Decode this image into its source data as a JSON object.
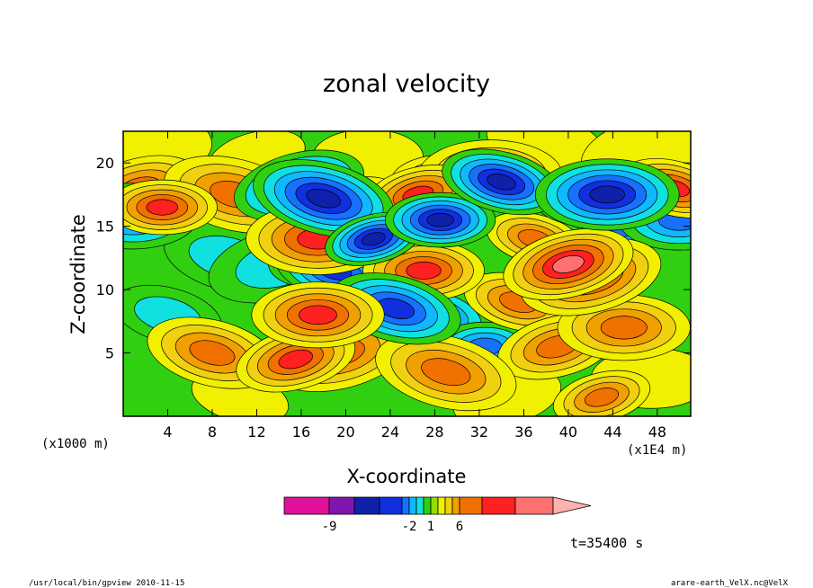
{
  "chart_data": {
    "type": "heatmap",
    "title": "zonal velocity",
    "xlabel": "X-coordinate",
    "ylabel": "Z-coordinate",
    "x_unit": "(x1000 m)",
    "x_scale_note": "(x1E4 m)",
    "x_ticks": [
      "4",
      "8",
      "12",
      "16",
      "20",
      "24",
      "28",
      "32",
      "36",
      "40",
      "44",
      "48"
    ],
    "y_ticks": [
      "5",
      "10",
      "15",
      "20"
    ],
    "xlim": [
      0,
      51
    ],
    "ylim": [
      0,
      22.5
    ],
    "colorbar": {
      "labels": [
        {
          "text": "-9",
          "level": -9
        },
        {
          "text": "-2",
          "level": -2
        },
        {
          "text": "1",
          "level": 1
        },
        {
          "text": "6",
          "level": 6
        }
      ],
      "levels": [
        -15,
        -12,
        -9,
        -6,
        -4,
        -3,
        -2,
        -1,
        0,
        1,
        2,
        3,
        4,
        6,
        9,
        12,
        15
      ],
      "colors": [
        "#e0109a",
        "#8015b0",
        "#1020a8",
        "#1030e0",
        "#1870ff",
        "#10b8ff",
        "#10e0e0",
        "#30d010",
        "#90e000",
        "#f0f000",
        "#f0d010",
        "#f0a000",
        "#f07000",
        "#ff2020",
        "#ff7070",
        "#ffb0b0"
      ]
    },
    "time_label": "t=35400 s",
    "features": [
      {
        "x": 3.5,
        "z": 16.5,
        "level": 6
      },
      {
        "x": 1.5,
        "z": 18.0,
        "level": 4
      },
      {
        "x": 0.8,
        "z": 15.8,
        "level": -4
      },
      {
        "x": 10.0,
        "z": 17.5,
        "level": 4
      },
      {
        "x": 9.5,
        "z": 12.5,
        "level": -2
      },
      {
        "x": 14.0,
        "z": 12.0,
        "level": -2
      },
      {
        "x": 17.5,
        "z": 12.0,
        "level": -2
      },
      {
        "x": 19.0,
        "z": 11.5,
        "level": -6
      },
      {
        "x": 15.8,
        "z": 18.2,
        "level": -6
      },
      {
        "x": 18.0,
        "z": 17.2,
        "level": -9
      },
      {
        "x": 17.5,
        "z": 14.0,
        "level": 6
      },
      {
        "x": 20.5,
        "z": 16.8,
        "level": 4
      },
      {
        "x": 22.5,
        "z": 14.0,
        "level": -9
      },
      {
        "x": 25.5,
        "z": 14.5,
        "level": -6
      },
      {
        "x": 26.5,
        "z": 17.5,
        "level": 6
      },
      {
        "x": 29.0,
        "z": 18.5,
        "level": 4
      },
      {
        "x": 28.5,
        "z": 15.5,
        "level": -9
      },
      {
        "x": 27.0,
        "z": 11.5,
        "level": 6
      },
      {
        "x": 24.5,
        "z": 8.5,
        "level": -6
      },
      {
        "x": 28.0,
        "z": 8.0,
        "level": -4
      },
      {
        "x": 23.5,
        "z": 6.0,
        "level": 4
      },
      {
        "x": 33.0,
        "z": 19.0,
        "level": 4
      },
      {
        "x": 34.0,
        "z": 18.5,
        "level": -9
      },
      {
        "x": 37.0,
        "z": 14.0,
        "level": 4
      },
      {
        "x": 40.0,
        "z": 12.0,
        "level": 9
      },
      {
        "x": 42.0,
        "z": 11.0,
        "level": 6
      },
      {
        "x": 43.5,
        "z": 17.5,
        "level": -9
      },
      {
        "x": 41.5,
        "z": 17.0,
        "level": -6
      },
      {
        "x": 45.5,
        "z": 15.0,
        "level": -4
      },
      {
        "x": 49.5,
        "z": 18.0,
        "level": 6
      },
      {
        "x": 50.0,
        "z": 15.5,
        "level": -4
      },
      {
        "x": 15.5,
        "z": 4.5,
        "level": 6
      },
      {
        "x": 17.5,
        "z": 8.0,
        "level": 6
      },
      {
        "x": 8.0,
        "z": 5.0,
        "level": 4
      },
      {
        "x": 19.5,
        "z": 5.0,
        "level": 4
      },
      {
        "x": 32.5,
        "z": 5.5,
        "level": -4
      },
      {
        "x": 35.5,
        "z": 9.0,
        "level": 4
      },
      {
        "x": 39.0,
        "z": 5.5,
        "level": 4
      },
      {
        "x": 45.0,
        "z": 7.0,
        "level": 4
      },
      {
        "x": 29.0,
        "z": 3.5,
        "level": 4
      },
      {
        "x": 4.0,
        "z": 8.0,
        "level": -2
      },
      {
        "x": 12.0,
        "z": 20.5,
        "level": 1
      },
      {
        "x": 22.0,
        "z": 20.5,
        "level": 1
      },
      {
        "x": 38.0,
        "z": 21.5,
        "level": 1
      },
      {
        "x": 47.0,
        "z": 21.0,
        "level": 1
      },
      {
        "x": 1.5,
        "z": 21.5,
        "level": 1
      },
      {
        "x": 10.5,
        "z": 1.5,
        "level": 1
      },
      {
        "x": 34.5,
        "z": 1.5,
        "level": 1
      },
      {
        "x": 47.5,
        "z": 3.0,
        "level": 1
      },
      {
        "x": 43.0,
        "z": 1.5,
        "level": 4
      }
    ]
  },
  "footer": {
    "left": "/usr/local/bin/gpview  2010-11-15",
    "right": "arare-earth_VelX.nc@VelX"
  }
}
